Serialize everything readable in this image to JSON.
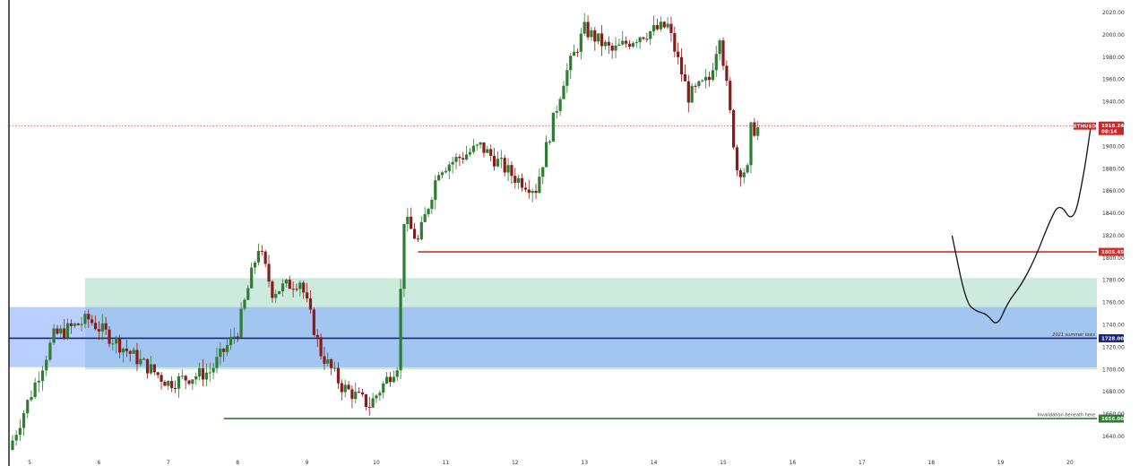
{
  "chart_data": {
    "type": "candlestick",
    "symbol": "ETHUSD",
    "x_axis": {
      "tick_labels": [
        "5",
        "6",
        "7",
        "8",
        "9",
        "10",
        "11",
        "12",
        "13",
        "14",
        "15",
        "16",
        "17",
        "18",
        "19",
        "20"
      ]
    },
    "y_axis": {
      "range": [
        1628,
        2030
      ],
      "tick_values": [
        1640,
        1660,
        1680,
        1700,
        1720,
        1740,
        1760,
        1780,
        1800,
        1820,
        1840,
        1860,
        1880,
        1900,
        1920,
        1940,
        1960,
        1980,
        2000,
        2020
      ],
      "tick_labels": [
        "1640.00",
        "1660.00",
        "1680.00",
        "1700.00",
        "1720.00",
        "1740.00",
        "1760.00",
        "1780.00",
        "1800.00",
        "1820.00",
        "1840.00",
        "1860.00",
        "1880.00",
        "1900.00",
        "1920.00",
        "1940.00",
        "1960.00",
        "1980.00",
        "2000.00",
        "2020.00"
      ],
      "position": "right"
    },
    "current_price": {
      "value": 1918.24,
      "symbol_label": "ETHUSD",
      "price_label": "1918.24",
      "countdown_label": "08:14",
      "color": "#c62828"
    },
    "levels": [
      {
        "value": 1805.45,
        "label": "1805.45",
        "color": "#d32f2f",
        "start_day": 10.6
      },
      {
        "value": 1728.0,
        "label": "1728.00",
        "color": "#1a237e",
        "note": "2021 summer lows",
        "start_day": 4.7
      },
      {
        "value": 1656.0,
        "label": "1656.00",
        "color": "#2e7d32",
        "note": "Invalidation beneath here",
        "start_day": 7.8
      }
    ],
    "zones": [
      {
        "low": 1700,
        "high": 1782,
        "start_day": 5.8,
        "color": "#8fd3b6"
      },
      {
        "low": 1702,
        "high": 1756,
        "start_day": 4.7,
        "color": "#7fa7ff"
      }
    ],
    "projection_path": [
      [
        18.3,
        1820
      ],
      [
        18.5,
        1760
      ],
      [
        18.65,
        1752
      ],
      [
        18.8,
        1750
      ],
      [
        18.95,
        1738
      ],
      [
        19.1,
        1760
      ],
      [
        19.3,
        1776
      ],
      [
        19.5,
        1800
      ],
      [
        19.7,
        1832
      ],
      [
        19.85,
        1850
      ],
      [
        20.05,
        1830
      ],
      [
        20.2,
        1875
      ],
      [
        20.3,
        1918
      ]
    ],
    "key_swings": [
      [
        4.7,
        1628
      ],
      [
        5.35,
        1730
      ],
      [
        5.85,
        1745
      ],
      [
        6.5,
        1712
      ],
      [
        7.0,
        1688
      ],
      [
        7.6,
        1698
      ],
      [
        8.0,
        1735
      ],
      [
        8.3,
        1810
      ],
      [
        8.5,
        1770
      ],
      [
        8.9,
        1780
      ],
      [
        9.2,
        1715
      ],
      [
        9.5,
        1685
      ],
      [
        9.9,
        1668
      ],
      [
        10.3,
        1705
      ],
      [
        10.4,
        1835
      ],
      [
        10.6,
        1815
      ],
      [
        10.9,
        1880
      ],
      [
        11.5,
        1900
      ],
      [
        12.0,
        1872
      ],
      [
        12.3,
        1862
      ],
      [
        12.7,
        1960
      ],
      [
        13.0,
        2005
      ],
      [
        13.4,
        1985
      ],
      [
        13.8,
        2000
      ],
      [
        14.2,
        2008
      ],
      [
        14.5,
        1945
      ],
      [
        14.8,
        1960
      ],
      [
        14.95,
        2002
      ],
      [
        15.2,
        1880
      ],
      [
        15.35,
        1878
      ],
      [
        15.4,
        1915
      ],
      [
        15.5,
        1916
      ]
    ],
    "candle_colors": {
      "up": "#2e7d32",
      "down": "#8b1a1a"
    },
    "grid": false
  }
}
